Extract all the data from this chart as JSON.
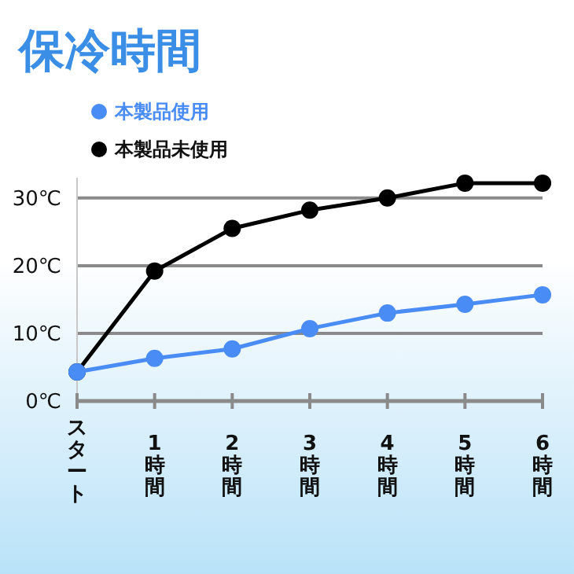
{
  "chart_data": {
    "type": "line",
    "title": "保冷時間",
    "categories": [
      "スタート",
      "1時間",
      "2時間",
      "3時間",
      "4時間",
      "5時間",
      "6時間"
    ],
    "series": [
      {
        "name": "本製品使用",
        "color": "#4a8cf5",
        "values": [
          4.3,
          6.3,
          7.7,
          10.7,
          13,
          14.3,
          15.7
        ]
      },
      {
        "name": "本製品未使用",
        "color": "#000000",
        "values": [
          4.3,
          19.2,
          25.5,
          28.2,
          30,
          32.2,
          32.2
        ]
      }
    ],
    "ylim": [
      0,
      33
    ],
    "yticks": [
      {
        "value": 0,
        "label": "0℃"
      },
      {
        "value": 10,
        "label": "10℃"
      },
      {
        "value": 20,
        "label": "20℃"
      },
      {
        "value": 30,
        "label": "30℃"
      }
    ],
    "grid": "y",
    "legend": "top left",
    "marker": "circle",
    "line_style": "solid"
  }
}
